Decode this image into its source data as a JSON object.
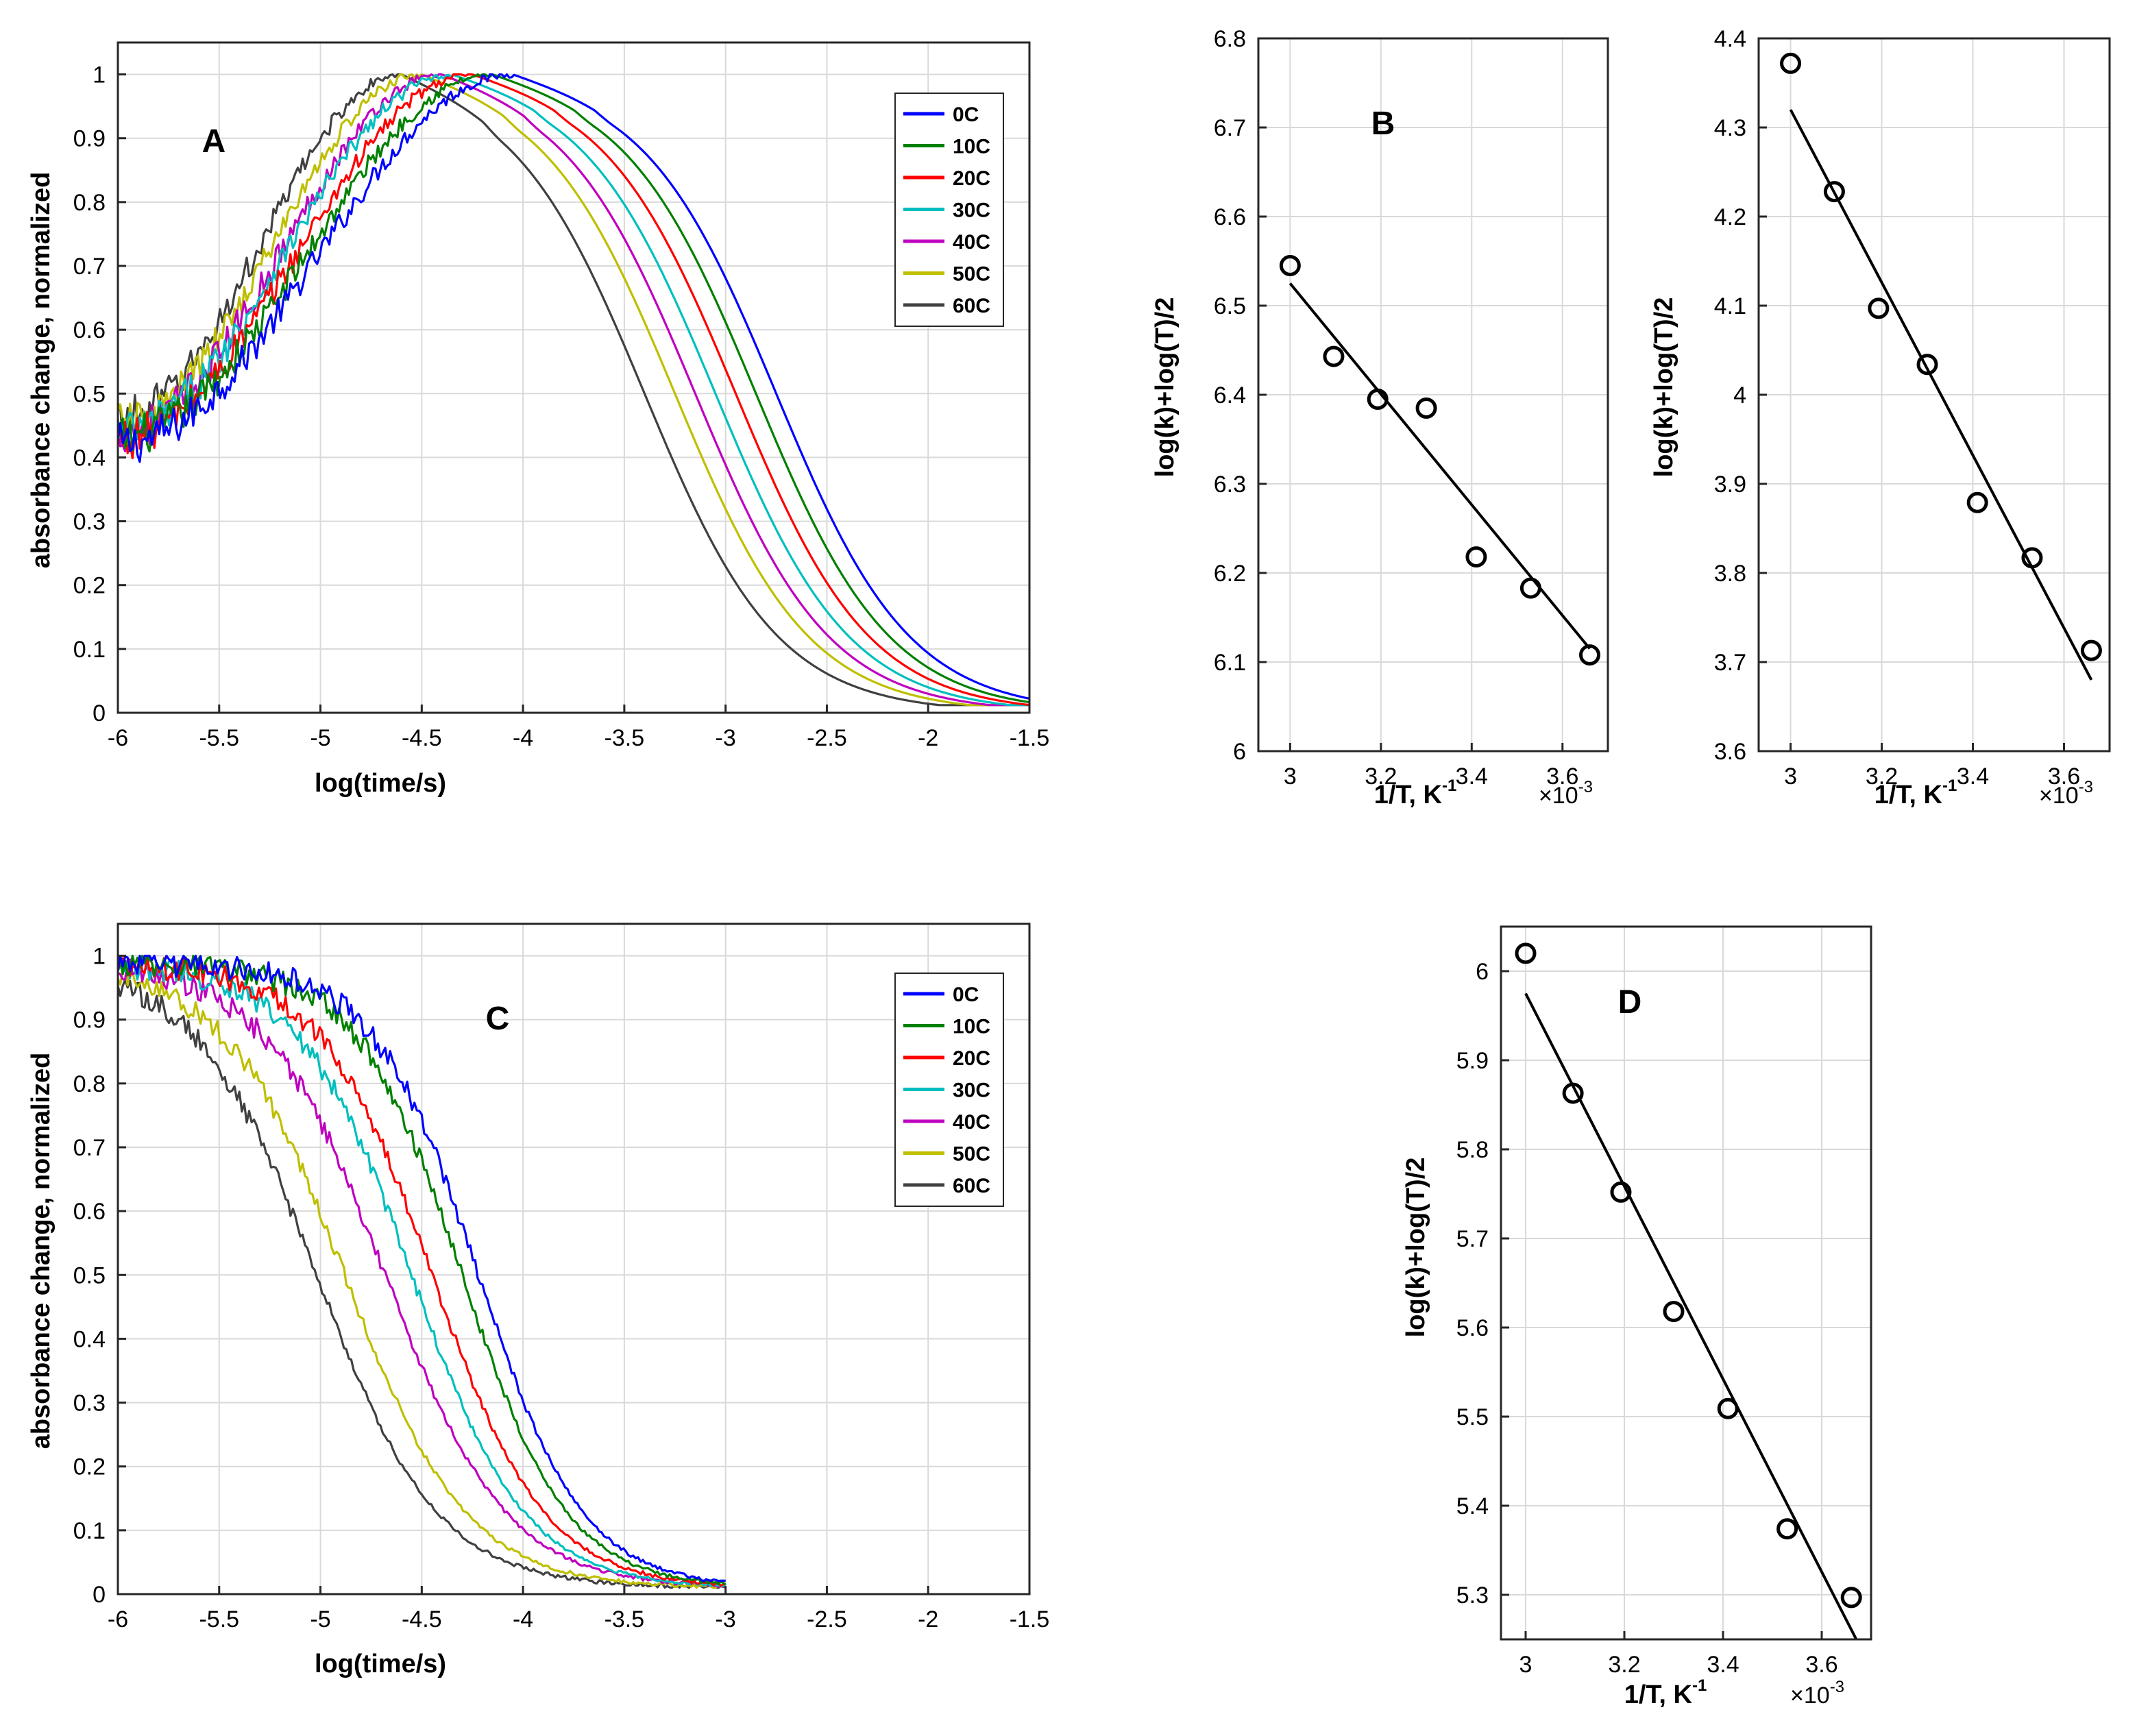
{
  "chart_data": [
    {
      "panel": "A",
      "type": "line",
      "title": "",
      "xlabel": "log(time/s)",
      "ylabel": "absorbance change, normalized",
      "xlim": [
        -6,
        -1.5
      ],
      "ylim": [
        0,
        1.05
      ],
      "xticks": [
        "-6",
        "-5.5",
        "-5",
        "-4.5",
        "-4",
        "-3.5",
        "-3",
        "-2.5",
        "-2",
        "-1.5"
      ],
      "yticks": [
        "0",
        "0.1",
        "0.2",
        "0.3",
        "0.4",
        "0.5",
        "0.6",
        "0.7",
        "0.8",
        "0.9",
        "1"
      ],
      "grid": true,
      "legend_position": "top-right",
      "x_end": -1.5,
      "series": [
        {
          "name": "0C",
          "color": "#0000ff",
          "start": 0.42,
          "peak_x": -4.05,
          "decay_half_x": -2.75,
          "noise": 0.035
        },
        {
          "name": "10C",
          "color": "#008000",
          "start": 0.43,
          "peak_x": -4.15,
          "decay_half_x": -2.85,
          "noise": 0.035
        },
        {
          "name": "20C",
          "color": "#ff0000",
          "start": 0.43,
          "peak_x": -4.25,
          "decay_half_x": -2.95,
          "noise": 0.035
        },
        {
          "name": "30C",
          "color": "#00bfbf",
          "start": 0.44,
          "peak_x": -4.35,
          "decay_half_x": -3.05,
          "noise": 0.035
        },
        {
          "name": "40C",
          "color": "#bf00bf",
          "start": 0.44,
          "peak_x": -4.4,
          "decay_half_x": -3.15,
          "noise": 0.035
        },
        {
          "name": "50C",
          "color": "#bfbf00",
          "start": 0.45,
          "peak_x": -4.5,
          "decay_half_x": -3.25,
          "noise": 0.035
        },
        {
          "name": "60C",
          "color": "#404040",
          "start": 0.46,
          "peak_x": -4.6,
          "decay_half_x": -3.4,
          "noise": 0.035
        }
      ]
    },
    {
      "panel": "B",
      "type": "scatter",
      "xlabel": "1/T, K",
      "xlabel_sup": "-1",
      "x_multiplier": "×10",
      "x_multiplier_sup": "-3",
      "ylabel": "log(k)+log(T)/2",
      "xlim": [
        2.93,
        3.7
      ],
      "ylim": [
        6.0,
        6.8
      ],
      "xticks": [
        "3",
        "3.2",
        "3.4",
        "3.6"
      ],
      "yticks": [
        "6",
        "6.1",
        "6.2",
        "6.3",
        "6.4",
        "6.5",
        "6.6",
        "6.7",
        "6.8"
      ],
      "grid": true,
      "x": [
        3.0,
        3.096,
        3.193,
        3.3,
        3.41,
        3.53,
        3.66
      ],
      "y": [
        6.545,
        6.443,
        6.395,
        6.385,
        6.218,
        6.183,
        6.108
      ],
      "fit_line": {
        "x": [
          3.0,
          3.66
        ],
        "y": [
          6.525,
          6.115
        ]
      }
    },
    {
      "panel": "B-right",
      "type": "scatter",
      "xlabel": "1/T, K",
      "xlabel_sup": "-1",
      "x_multiplier": "×10",
      "x_multiplier_sup": "-3",
      "ylabel": "log(k)+log(T)/2",
      "xlim": [
        2.93,
        3.7
      ],
      "ylim": [
        3.6,
        4.4
      ],
      "xticks": [
        "3",
        "3.2",
        "3.4",
        "3.6"
      ],
      "yticks": [
        "3.6",
        "3.7",
        "3.8",
        "3.9",
        "4",
        "4.1",
        "4.2",
        "4.3",
        "4.4"
      ],
      "grid": true,
      "x": [
        3.0,
        3.096,
        3.193,
        3.3,
        3.41,
        3.53,
        3.66
      ],
      "y": [
        4.372,
        4.228,
        4.097,
        4.034,
        3.879,
        3.817,
        3.713
      ],
      "fit_line": {
        "x": [
          3.0,
          3.66
        ],
        "y": [
          4.32,
          3.68
        ]
      }
    },
    {
      "panel": "C",
      "type": "line",
      "title": "",
      "xlabel": "log(time/s)",
      "ylabel": "absorbance change, normalized",
      "xlim": [
        -6,
        -1.5
      ],
      "ylim": [
        0,
        1.05
      ],
      "xticks": [
        "-6",
        "-5.5",
        "-5",
        "-4.5",
        "-4",
        "-3.5",
        "-3",
        "-2.5",
        "-2",
        "-1.5"
      ],
      "yticks": [
        "0",
        "0.1",
        "0.2",
        "0.3",
        "0.4",
        "0.5",
        "0.6",
        "0.7",
        "0.8",
        "0.9",
        "1"
      ],
      "grid": true,
      "legend_position": "top-right",
      "x_end": -3,
      "series": [
        {
          "name": "0C",
          "color": "#0000ff",
          "half_x": -4.22,
          "width": 0.26,
          "noise": 0.02
        },
        {
          "name": "10C",
          "color": "#008000",
          "half_x": -4.3,
          "width": 0.26,
          "noise": 0.02
        },
        {
          "name": "20C",
          "color": "#ff0000",
          "half_x": -4.45,
          "width": 0.28,
          "noise": 0.02
        },
        {
          "name": "30C",
          "color": "#00bfbf",
          "half_x": -4.55,
          "width": 0.28,
          "noise": 0.02
        },
        {
          "name": "40C",
          "color": "#bf00bf",
          "half_x": -4.68,
          "width": 0.3,
          "noise": 0.02
        },
        {
          "name": "50C",
          "color": "#bfbf00",
          "half_x": -4.88,
          "width": 0.3,
          "noise": 0.02
        },
        {
          "name": "60C",
          "color": "#404040",
          "half_x": -5.02,
          "width": 0.3,
          "noise": 0.02
        }
      ]
    },
    {
      "panel": "D",
      "type": "scatter",
      "xlabel": "1/T, K",
      "xlabel_sup": "-1",
      "x_multiplier": "×10",
      "x_multiplier_sup": "-3",
      "ylabel": "log(k)+log(T)/2",
      "xlim": [
        2.95,
        3.7
      ],
      "ylim": [
        5.25,
        6.05
      ],
      "xticks": [
        "3",
        "3.2",
        "3.4",
        "3.6"
      ],
      "yticks": [
        "5.3",
        "5.4",
        "5.5",
        "5.6",
        "5.7",
        "5.8",
        "5.9",
        "6"
      ],
      "grid": true,
      "x": [
        3.0,
        3.096,
        3.193,
        3.3,
        3.41,
        3.53,
        3.66
      ],
      "y": [
        6.02,
        5.863,
        5.752,
        5.618,
        5.509,
        5.374,
        5.297
      ],
      "fit_line": {
        "x": [
          3.0,
          3.67
        ],
        "y": [
          5.975,
          5.25
        ]
      }
    }
  ]
}
